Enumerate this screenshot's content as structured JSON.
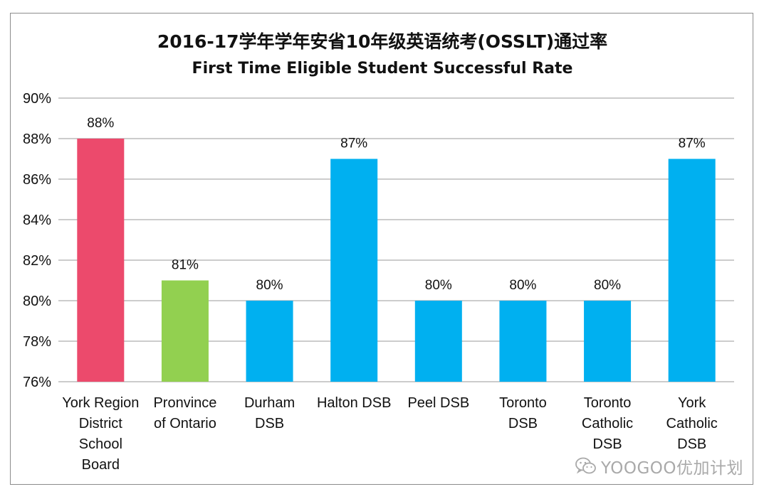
{
  "chart_data": {
    "type": "bar",
    "title": "2016-17学年学年安省10年级英语统考(OSSLT)通过率",
    "subtitle": "First Time Eligible Student Successful Rate",
    "xlabel": "",
    "ylabel": "",
    "ylim": [
      76,
      90
    ],
    "y_ticks": [
      "76%",
      "78%",
      "80%",
      "82%",
      "84%",
      "86%",
      "88%",
      "90%"
    ],
    "grid": true,
    "legend": "none",
    "categories": [
      [
        "York Region",
        "District",
        "School",
        "Board"
      ],
      [
        "Pronvince",
        "of Ontario"
      ],
      [
        "Durham",
        "DSB"
      ],
      [
        "Halton DSB"
      ],
      [
        "Peel DSB"
      ],
      [
        "Toronto",
        "DSB"
      ],
      [
        "Toronto",
        "Catholic",
        "DSB"
      ],
      [
        "York",
        "Catholic",
        "DSB"
      ]
    ],
    "values": [
      88,
      81,
      80,
      87,
      80,
      80,
      80,
      87
    ],
    "data_labels": [
      "88%",
      "81%",
      "80%",
      "87%",
      "80%",
      "80%",
      "80%",
      "87%"
    ],
    "bar_colors": [
      "#ec4a6c",
      "#92d050",
      "#00b0f0",
      "#00b0f0",
      "#00b0f0",
      "#00b0f0",
      "#00b0f0",
      "#00b0f0"
    ]
  },
  "watermark": {
    "text": "YOOGOO优加计划",
    "icon": "wechat-icon"
  }
}
